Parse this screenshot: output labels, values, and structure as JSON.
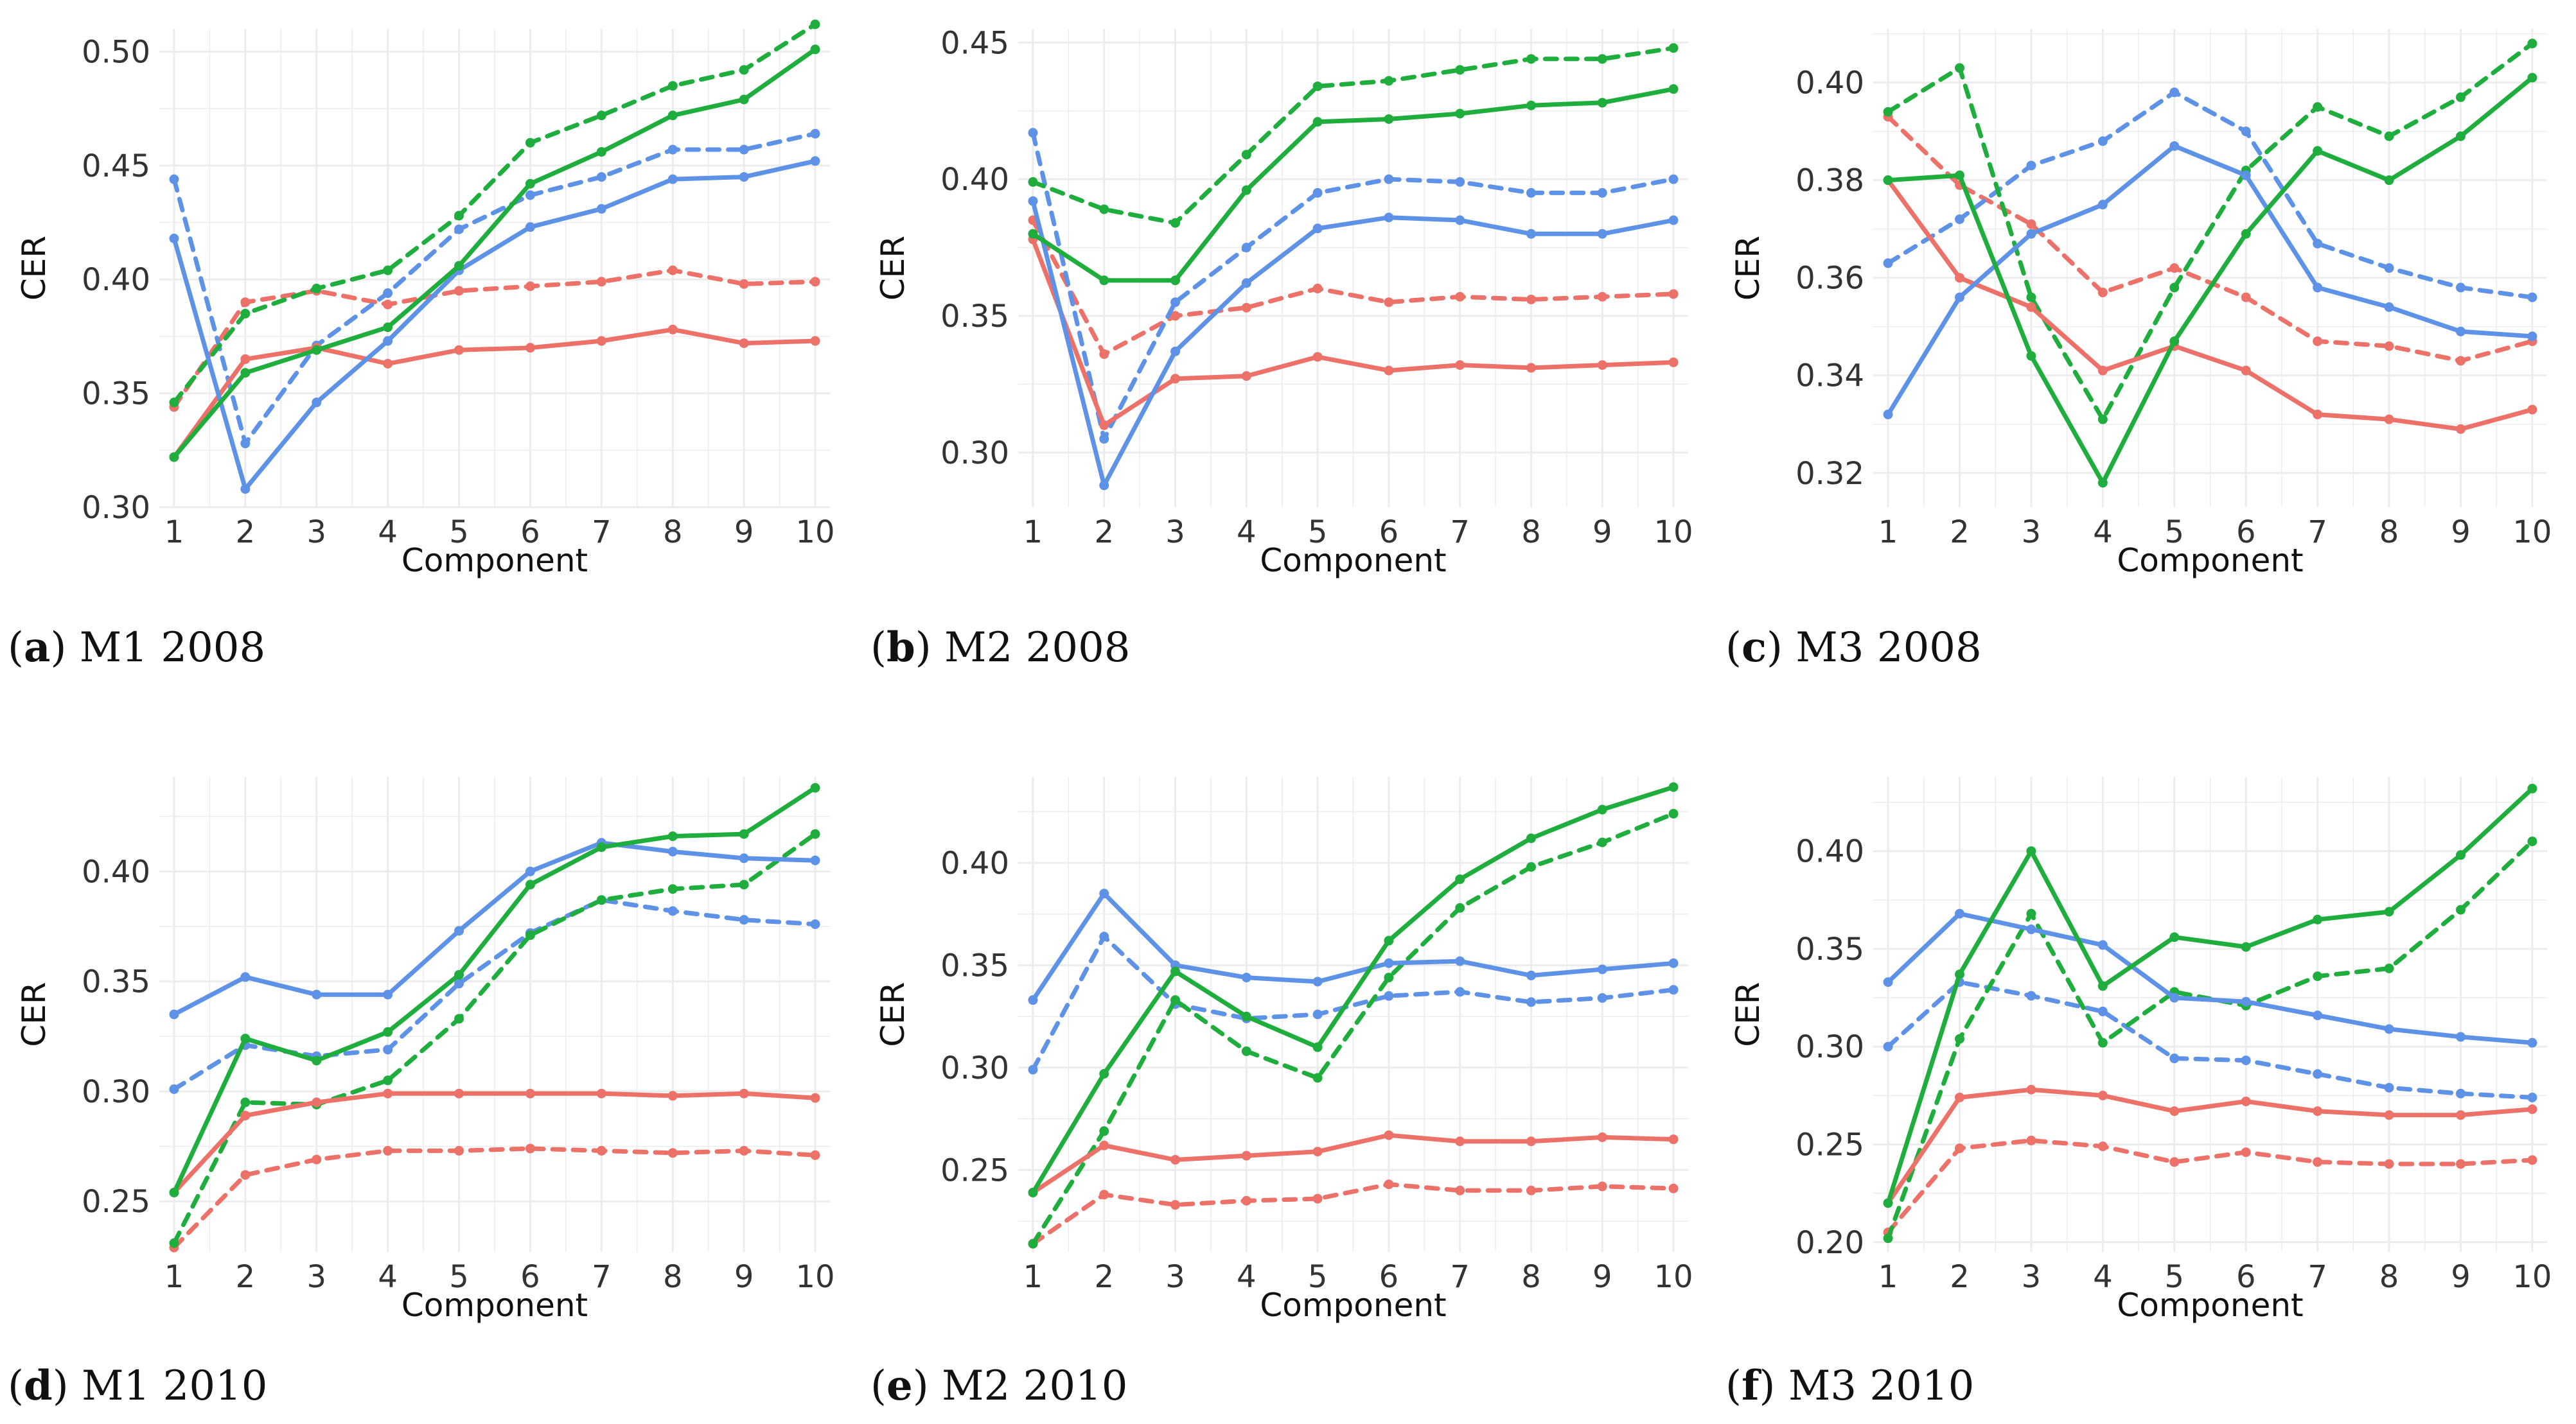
{
  "colors": {
    "red": "#ec7168",
    "blue": "#5e92e6",
    "green": "#1fae3d",
    "grid": "#ececec"
  },
  "chart_data": [
    {
      "type": "line",
      "title": "M1 2008",
      "caption_letter": "a",
      "xlabel": "Component",
      "ylabel": "CER",
      "x": [
        1,
        2,
        3,
        4,
        5,
        6,
        7,
        8,
        9,
        10
      ],
      "ylim": [
        0.3,
        0.51
      ],
      "yticks": [
        0.3,
        0.35,
        0.4,
        0.45,
        0.5
      ],
      "ytick_labels": [
        "0.30",
        "0.35",
        "0.40",
        "0.45",
        "0.50"
      ],
      "series": [
        {
          "color": "red",
          "style": "dashed",
          "values": [
            0.344,
            0.39,
            0.395,
            0.389,
            0.395,
            0.397,
            0.399,
            0.404,
            0.398,
            0.399
          ]
        },
        {
          "color": "blue",
          "style": "dashed",
          "values": [
            0.444,
            0.328,
            0.371,
            0.394,
            0.422,
            0.437,
            0.445,
            0.457,
            0.457,
            0.464
          ]
        },
        {
          "color": "green",
          "style": "dashed",
          "values": [
            0.346,
            0.385,
            0.396,
            0.404,
            0.428,
            0.46,
            0.472,
            0.485,
            0.492,
            0.512
          ]
        },
        {
          "color": "red",
          "style": "solid",
          "values": [
            0.322,
            0.365,
            0.37,
            0.363,
            0.369,
            0.37,
            0.373,
            0.378,
            0.372,
            0.373
          ]
        },
        {
          "color": "blue",
          "style": "solid",
          "values": [
            0.418,
            0.308,
            0.346,
            0.373,
            0.404,
            0.423,
            0.431,
            0.444,
            0.445,
            0.452
          ]
        },
        {
          "color": "green",
          "style": "solid",
          "values": [
            0.322,
            0.359,
            0.369,
            0.379,
            0.406,
            0.442,
            0.456,
            0.472,
            0.479,
            0.501
          ]
        }
      ]
    },
    {
      "type": "line",
      "title": "M2 2008",
      "caption_letter": "b",
      "xlabel": "Component",
      "ylabel": "CER",
      "x": [
        1,
        2,
        3,
        4,
        5,
        6,
        7,
        8,
        9,
        10
      ],
      "ylim": [
        0.28,
        0.455
      ],
      "yticks": [
        0.3,
        0.35,
        0.4,
        0.45
      ],
      "ytick_labels": [
        "0.30",
        "0.35",
        "0.40",
        "0.45"
      ],
      "series": [
        {
          "color": "red",
          "style": "dashed",
          "values": [
            0.385,
            0.336,
            0.35,
            0.353,
            0.36,
            0.355,
            0.357,
            0.356,
            0.357,
            0.358
          ]
        },
        {
          "color": "blue",
          "style": "dashed",
          "values": [
            0.417,
            0.305,
            0.355,
            0.375,
            0.395,
            0.4,
            0.399,
            0.395,
            0.395,
            0.4
          ]
        },
        {
          "color": "green",
          "style": "dashed",
          "values": [
            0.399,
            0.389,
            0.384,
            0.409,
            0.434,
            0.436,
            0.44,
            0.444,
            0.444,
            0.448
          ]
        },
        {
          "color": "red",
          "style": "solid",
          "values": [
            0.378,
            0.31,
            0.327,
            0.328,
            0.335,
            0.33,
            0.332,
            0.331,
            0.332,
            0.333
          ]
        },
        {
          "color": "blue",
          "style": "solid",
          "values": [
            0.392,
            0.288,
            0.337,
            0.362,
            0.382,
            0.386,
            0.385,
            0.38,
            0.38,
            0.385
          ]
        },
        {
          "color": "green",
          "style": "solid",
          "values": [
            0.38,
            0.363,
            0.363,
            0.396,
            0.421,
            0.422,
            0.424,
            0.427,
            0.428,
            0.433
          ]
        }
      ]
    },
    {
      "type": "line",
      "title": "M3 2008",
      "caption_letter": "c",
      "xlabel": "Component",
      "ylabel": "CER",
      "x": [
        1,
        2,
        3,
        4,
        5,
        6,
        7,
        8,
        9,
        10
      ],
      "ylim": [
        0.313,
        0.411
      ],
      "yticks": [
        0.32,
        0.34,
        0.36,
        0.38,
        0.4
      ],
      "ytick_labels": [
        "0.32",
        "0.34",
        "0.36",
        "0.38",
        "0.40"
      ],
      "series": [
        {
          "color": "red",
          "style": "dashed",
          "values": [
            0.393,
            0.379,
            0.371,
            0.357,
            0.362,
            0.356,
            0.347,
            0.346,
            0.343,
            0.347
          ]
        },
        {
          "color": "blue",
          "style": "dashed",
          "values": [
            0.363,
            0.372,
            0.383,
            0.388,
            0.398,
            0.39,
            0.367,
            0.362,
            0.358,
            0.356
          ]
        },
        {
          "color": "green",
          "style": "dashed",
          "values": [
            0.394,
            0.403,
            0.356,
            0.331,
            0.358,
            0.382,
            0.395,
            0.389,
            0.397,
            0.408
          ]
        },
        {
          "color": "red",
          "style": "solid",
          "values": [
            0.38,
            0.36,
            0.354,
            0.341,
            0.346,
            0.341,
            0.332,
            0.331,
            0.329,
            0.333
          ]
        },
        {
          "color": "blue",
          "style": "solid",
          "values": [
            0.332,
            0.356,
            0.369,
            0.375,
            0.387,
            0.381,
            0.358,
            0.354,
            0.349,
            0.348
          ]
        },
        {
          "color": "green",
          "style": "solid",
          "values": [
            0.38,
            0.381,
            0.344,
            0.318,
            0.347,
            0.369,
            0.386,
            0.38,
            0.389,
            0.401
          ]
        }
      ]
    },
    {
      "type": "line",
      "title": "M1 2010",
      "caption_letter": "d",
      "xlabel": "Component",
      "ylabel": "CER",
      "x": [
        1,
        2,
        3,
        4,
        5,
        6,
        7,
        8,
        9,
        10
      ],
      "ylim": [
        0.227,
        0.443
      ],
      "yticks": [
        0.25,
        0.3,
        0.35,
        0.4
      ],
      "ytick_labels": [
        "0.25",
        "0.30",
        "0.35",
        "0.40"
      ],
      "series": [
        {
          "color": "red",
          "style": "dashed",
          "values": [
            0.229,
            0.262,
            0.269,
            0.273,
            0.273,
            0.274,
            0.273,
            0.272,
            0.273,
            0.271
          ]
        },
        {
          "color": "blue",
          "style": "dashed",
          "values": [
            0.301,
            0.321,
            0.316,
            0.319,
            0.349,
            0.372,
            0.387,
            0.382,
            0.378,
            0.376
          ]
        },
        {
          "color": "green",
          "style": "dashed",
          "values": [
            0.231,
            0.295,
            0.294,
            0.305,
            0.333,
            0.371,
            0.387,
            0.392,
            0.394,
            0.417
          ]
        },
        {
          "color": "red",
          "style": "solid",
          "values": [
            0.254,
            0.289,
            0.295,
            0.299,
            0.299,
            0.299,
            0.299,
            0.298,
            0.299,
            0.297
          ]
        },
        {
          "color": "blue",
          "style": "solid",
          "values": [
            0.335,
            0.352,
            0.344,
            0.344,
            0.373,
            0.4,
            0.413,
            0.409,
            0.406,
            0.405
          ]
        },
        {
          "color": "green",
          "style": "solid",
          "values": [
            0.254,
            0.324,
            0.314,
            0.327,
            0.353,
            0.394,
            0.411,
            0.416,
            0.417,
            0.438
          ]
        }
      ]
    },
    {
      "type": "line",
      "title": "M2 2010",
      "caption_letter": "e",
      "xlabel": "Component",
      "ylabel": "CER",
      "x": [
        1,
        2,
        3,
        4,
        5,
        6,
        7,
        8,
        9,
        10
      ],
      "ylim": [
        0.21,
        0.442
      ],
      "yticks": [
        0.25,
        0.3,
        0.35,
        0.4
      ],
      "ytick_labels": [
        "0.25",
        "0.30",
        "0.35",
        "0.40"
      ],
      "series": [
        {
          "color": "red",
          "style": "dashed",
          "values": [
            0.214,
            0.238,
            0.233,
            0.235,
            0.236,
            0.243,
            0.24,
            0.24,
            0.242,
            0.241
          ]
        },
        {
          "color": "blue",
          "style": "dashed",
          "values": [
            0.299,
            0.364,
            0.331,
            0.324,
            0.326,
            0.335,
            0.337,
            0.332,
            0.334,
            0.338
          ]
        },
        {
          "color": "green",
          "style": "dashed",
          "values": [
            0.214,
            0.269,
            0.333,
            0.308,
            0.295,
            0.344,
            0.378,
            0.398,
            0.41,
            0.424
          ]
        },
        {
          "color": "red",
          "style": "solid",
          "values": [
            0.239,
            0.262,
            0.255,
            0.257,
            0.259,
            0.267,
            0.264,
            0.264,
            0.266,
            0.265
          ]
        },
        {
          "color": "blue",
          "style": "solid",
          "values": [
            0.333,
            0.385,
            0.35,
            0.344,
            0.342,
            0.351,
            0.352,
            0.345,
            0.348,
            0.351
          ]
        },
        {
          "color": "green",
          "style": "solid",
          "values": [
            0.239,
            0.297,
            0.347,
            0.325,
            0.31,
            0.362,
            0.392,
            0.412,
            0.426,
            0.437
          ]
        }
      ]
    },
    {
      "type": "line",
      "title": "M3 2010",
      "caption_letter": "f",
      "xlabel": "Component",
      "ylabel": "CER",
      "x": [
        1,
        2,
        3,
        4,
        5,
        6,
        7,
        8,
        9,
        10
      ],
      "ylim": [
        0.195,
        0.438
      ],
      "yticks": [
        0.2,
        0.25,
        0.3,
        0.35,
        0.4
      ],
      "ytick_labels": [
        "0.20",
        "0.25",
        "0.30",
        "0.35",
        "0.40"
      ],
      "series": [
        {
          "color": "red",
          "style": "dashed",
          "values": [
            0.205,
            0.248,
            0.252,
            0.249,
            0.241,
            0.246,
            0.241,
            0.24,
            0.24,
            0.242
          ]
        },
        {
          "color": "blue",
          "style": "dashed",
          "values": [
            0.3,
            0.333,
            0.326,
            0.318,
            0.294,
            0.293,
            0.286,
            0.279,
            0.276,
            0.274
          ]
        },
        {
          "color": "green",
          "style": "dashed",
          "values": [
            0.202,
            0.304,
            0.368,
            0.302,
            0.328,
            0.321,
            0.336,
            0.34,
            0.37,
            0.405
          ]
        },
        {
          "color": "red",
          "style": "solid",
          "values": [
            0.22,
            0.274,
            0.278,
            0.275,
            0.267,
            0.272,
            0.267,
            0.265,
            0.265,
            0.268
          ]
        },
        {
          "color": "blue",
          "style": "solid",
          "values": [
            0.333,
            0.368,
            0.36,
            0.352,
            0.325,
            0.323,
            0.316,
            0.309,
            0.305,
            0.302
          ]
        },
        {
          "color": "green",
          "style": "solid",
          "values": [
            0.22,
            0.337,
            0.4,
            0.331,
            0.356,
            0.351,
            0.365,
            0.369,
            0.398,
            0.432
          ]
        }
      ]
    }
  ]
}
